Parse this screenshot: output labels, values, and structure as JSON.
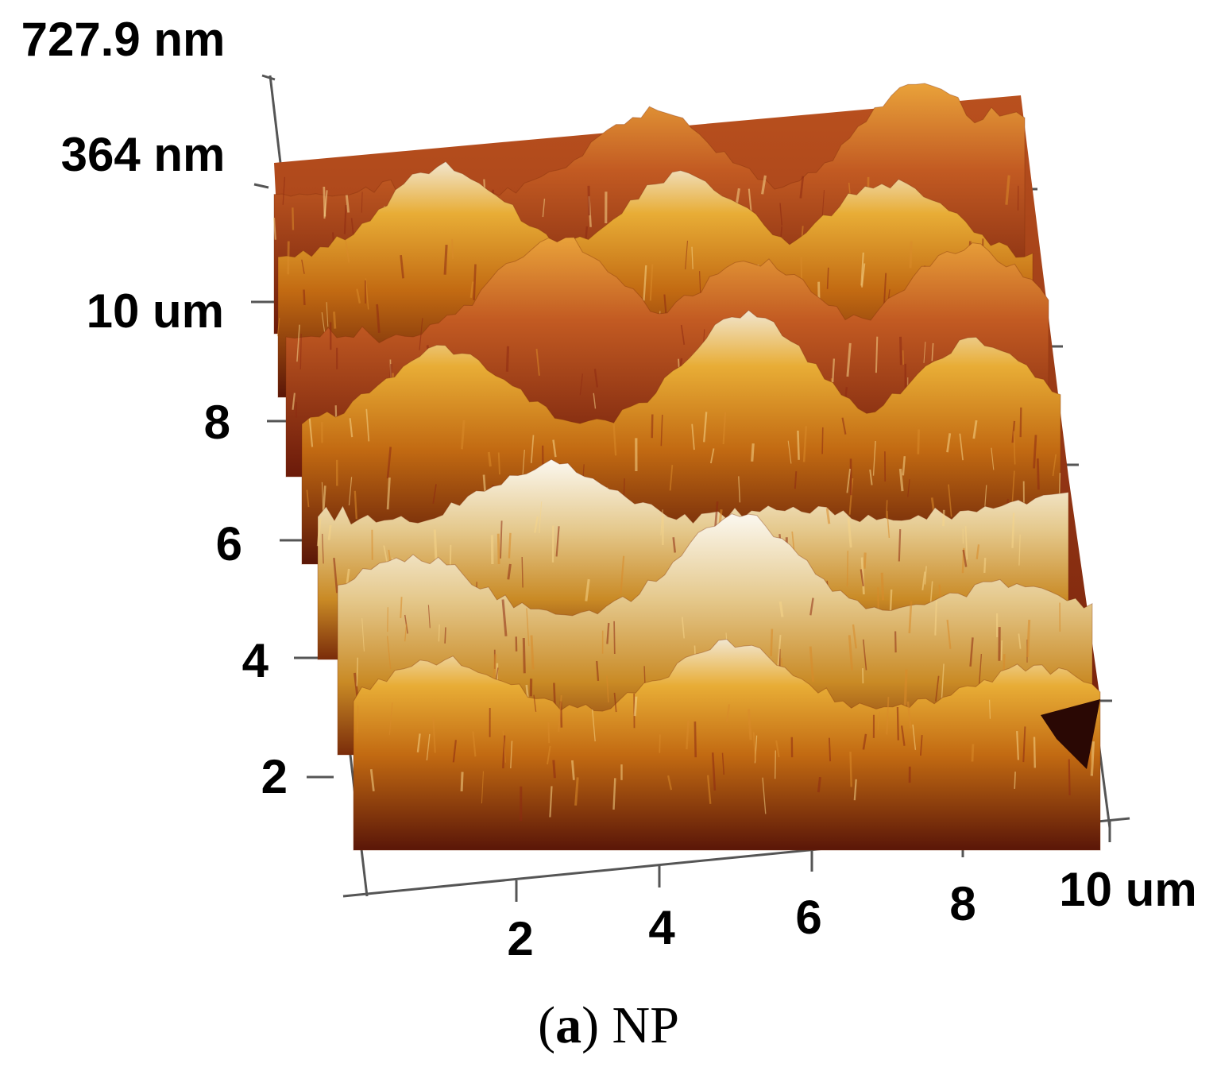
{
  "image": {
    "subject": "AFM 3D surface topography",
    "z_axis": {
      "ticks": [
        "727.9 nm",
        "364 nm"
      ]
    },
    "y_axis": {
      "ticks": [
        "2",
        "4",
        "6",
        "8",
        "10 um"
      ]
    },
    "x_axis": {
      "ticks": [
        "2",
        "4",
        "6",
        "8",
        "10 um"
      ]
    },
    "colors": {
      "dark": "#3a0a05",
      "red": "#a0301c",
      "orange": "#cf7a12",
      "gold": "#e9ad2e",
      "highlight": "#f4eee0"
    }
  },
  "caption": {
    "open": "(",
    "letter": "a",
    "rest": ") NP"
  }
}
